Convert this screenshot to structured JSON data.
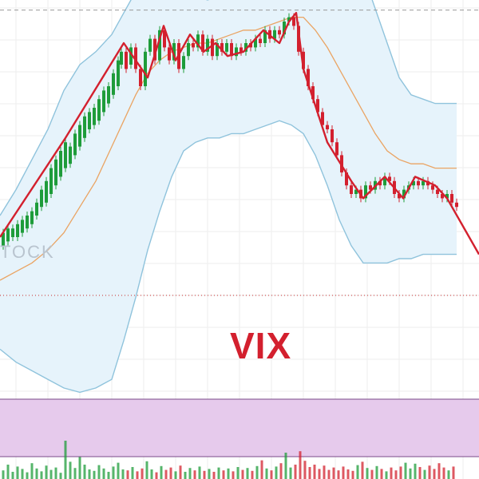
{
  "chart_data": {
    "type": "candlestick",
    "title": "VIX",
    "watermark": "TOCK",
    "colors": {
      "up": "#1e9c3a",
      "down": "#d3202e",
      "zigzag": "#d3202e",
      "band_line": "#8fc3dc",
      "band_fill": "#e6f3fb",
      "moving_average": "#eaa463",
      "volume_panel": "#e6caec",
      "volume_panel_border": "#7a4a88",
      "title": "#d3202e",
      "grid": "#eeeeee",
      "resistance_line": "#999999",
      "support_line": "#c62a2a"
    },
    "grid": true,
    "ylim": [
      0,
      100
    ],
    "bands": {
      "x": [
        0,
        20,
        40,
        60,
        80,
        100,
        120,
        140,
        155,
        170,
        185,
        200,
        215,
        230,
        245,
        260,
        275,
        290,
        305,
        320,
        335,
        350,
        365,
        380,
        395,
        410,
        425,
        440,
        455,
        470,
        485,
        500,
        515,
        530,
        545,
        560,
        572
      ],
      "upper": [
        50,
        56,
        63,
        70,
        79,
        85,
        88,
        92,
        97,
        102,
        106,
        108,
        107,
        104,
        101,
        100,
        101,
        102,
        103,
        104,
        106,
        107,
        108,
        111,
        115,
        118,
        116,
        113,
        106,
        98,
        90,
        82,
        78,
        77,
        76,
        76,
        76
      ],
      "lower": [
        19,
        16,
        14,
        12,
        10,
        9,
        10,
        12,
        21,
        31,
        42,
        51,
        59,
        65,
        67,
        68,
        68,
        69,
        69,
        70,
        71,
        72,
        71,
        69,
        64,
        57,
        49,
        43,
        39,
        39,
        39,
        40,
        40,
        41,
        41,
        41,
        41
      ],
      "middle": [
        35,
        37,
        39,
        42,
        46,
        52,
        58,
        66,
        72,
        78,
        83,
        86,
        88,
        89,
        90,
        90,
        91,
        92,
        93,
        93,
        94,
        95,
        96,
        96,
        93,
        89,
        84,
        79,
        74,
        69,
        65,
        63,
        62,
        62,
        61,
        61,
        61
      ]
    },
    "zigzag": [
      [
        0,
        45
      ],
      [
        82,
        68
      ],
      [
        155,
        90
      ],
      [
        185,
        82
      ],
      [
        205,
        94
      ],
      [
        220,
        86
      ],
      [
        238,
        92
      ],
      [
        255,
        88
      ],
      [
        270,
        90
      ],
      [
        285,
        87
      ],
      [
        305,
        88
      ],
      [
        330,
        93
      ],
      [
        350,
        90
      ],
      [
        362,
        95
      ],
      [
        371,
        97
      ],
      [
        380,
        84
      ],
      [
        410,
        67
      ],
      [
        440,
        58
      ],
      [
        455,
        54
      ],
      [
        482,
        59
      ],
      [
        505,
        54
      ],
      [
        520,
        59
      ],
      [
        545,
        57
      ],
      [
        560,
        54
      ],
      [
        600,
        41
      ]
    ],
    "candles": [
      [
        4,
        43,
        46
      ],
      [
        10,
        44,
        47
      ],
      [
        16,
        45,
        47
      ],
      [
        22,
        45,
        48
      ],
      [
        28,
        46,
        49
      ],
      [
        34,
        47,
        50
      ],
      [
        40,
        48,
        51
      ],
      [
        46,
        50,
        53
      ],
      [
        52,
        52,
        56
      ],
      [
        58,
        53,
        58
      ],
      [
        64,
        55,
        61
      ],
      [
        70,
        57,
        63
      ],
      [
        76,
        59,
        65
      ],
      [
        82,
        61,
        67
      ],
      [
        88,
        62,
        66
      ],
      [
        94,
        64,
        69
      ],
      [
        100,
        66,
        71
      ],
      [
        106,
        68,
        73
      ],
      [
        112,
        70,
        74
      ],
      [
        118,
        71,
        75
      ],
      [
        124,
        72,
        77
      ],
      [
        130,
        74,
        79
      ],
      [
        136,
        76,
        80
      ],
      [
        142,
        78,
        83
      ],
      [
        148,
        80,
        86
      ],
      [
        152,
        85,
        88
      ],
      [
        158,
        88,
        84
      ],
      [
        164,
        85,
        89
      ],
      [
        170,
        89,
        84
      ],
      [
        176,
        84,
        80
      ],
      [
        182,
        80,
        88
      ],
      [
        188,
        88,
        91
      ],
      [
        194,
        91,
        86
      ],
      [
        200,
        86,
        93
      ],
      [
        206,
        93,
        89
      ],
      [
        212,
        89,
        86
      ],
      [
        218,
        86,
        90
      ],
      [
        224,
        90,
        84
      ],
      [
        230,
        84,
        87
      ],
      [
        236,
        87,
        90
      ],
      [
        242,
        90,
        89
      ],
      [
        248,
        89,
        92
      ],
      [
        254,
        92,
        88
      ],
      [
        260,
        88,
        91
      ],
      [
        266,
        91,
        87
      ],
      [
        272,
        87,
        90
      ],
      [
        278,
        90,
        88
      ],
      [
        284,
        88,
        90
      ],
      [
        290,
        90,
        87
      ],
      [
        296,
        87,
        89
      ],
      [
        302,
        89,
        88
      ],
      [
        308,
        88,
        90
      ],
      [
        314,
        90,
        89
      ],
      [
        320,
        89,
        91
      ],
      [
        326,
        91,
        90
      ],
      [
        332,
        90,
        93
      ],
      [
        338,
        93,
        91
      ],
      [
        344,
        91,
        93
      ],
      [
        350,
        93,
        92
      ],
      [
        356,
        92,
        95
      ],
      [
        362,
        95,
        96
      ],
      [
        368,
        96,
        94
      ],
      [
        374,
        94,
        88
      ],
      [
        380,
        88,
        84
      ],
      [
        386,
        84,
        80
      ],
      [
        392,
        80,
        77
      ],
      [
        398,
        77,
        74
      ],
      [
        404,
        74,
        71
      ],
      [
        410,
        71,
        70
      ],
      [
        416,
        70,
        67
      ],
      [
        422,
        67,
        64
      ],
      [
        428,
        64,
        60
      ],
      [
        434,
        60,
        57
      ],
      [
        440,
        57,
        55
      ],
      [
        446,
        55,
        56
      ],
      [
        452,
        56,
        54
      ],
      [
        458,
        54,
        57
      ],
      [
        464,
        57,
        56
      ],
      [
        470,
        56,
        58
      ],
      [
        476,
        58,
        57
      ],
      [
        482,
        57,
        59
      ],
      [
        488,
        59,
        58
      ],
      [
        494,
        58,
        55
      ],
      [
        500,
        55,
        54
      ],
      [
        506,
        54,
        56
      ],
      [
        512,
        56,
        57
      ],
      [
        518,
        57,
        58
      ],
      [
        524,
        58,
        57
      ],
      [
        530,
        57,
        58
      ],
      [
        536,
        58,
        57
      ],
      [
        542,
        57,
        56
      ],
      [
        548,
        56,
        55
      ],
      [
        554,
        55,
        54
      ],
      [
        560,
        54,
        55
      ],
      [
        566,
        55,
        53
      ],
      [
        572,
        53,
        52
      ]
    ],
    "volume_range": [
      0,
      10
    ],
    "volumes": [
      [
        4,
        1.8
      ],
      [
        10,
        3.0
      ],
      [
        16,
        1.5
      ],
      [
        22,
        2.6
      ],
      [
        28,
        2.1
      ],
      [
        34,
        1.4
      ],
      [
        40,
        3.3
      ],
      [
        46,
        2.2
      ],
      [
        52,
        1.6
      ],
      [
        58,
        2.8
      ],
      [
        64,
        1.9
      ],
      [
        70,
        2.4
      ],
      [
        76,
        1.3
      ],
      [
        82,
        8.0
      ],
      [
        88,
        3.6
      ],
      [
        94,
        2.3
      ],
      [
        100,
        4.6
      ],
      [
        106,
        3.0
      ],
      [
        112,
        2.0
      ],
      [
        118,
        1.7
      ],
      [
        124,
        2.9
      ],
      [
        130,
        2.2
      ],
      [
        136,
        1.5
      ],
      [
        142,
        2.6
      ],
      [
        148,
        3.4
      ],
      [
        154,
        2.0
      ],
      [
        160,
        1.8
      ],
      [
        166,
        2.5
      ],
      [
        172,
        1.6
      ],
      [
        178,
        2.2
      ],
      [
        184,
        3.7
      ],
      [
        190,
        2.0
      ],
      [
        196,
        1.4
      ],
      [
        202,
        2.7
      ],
      [
        208,
        1.9
      ],
      [
        214,
        2.4
      ],
      [
        220,
        1.6
      ],
      [
        226,
        2.8
      ],
      [
        232,
        1.5
      ],
      [
        238,
        2.3
      ],
      [
        244,
        1.8
      ],
      [
        250,
        2.6
      ],
      [
        256,
        1.7
      ],
      [
        262,
        2.1
      ],
      [
        268,
        1.5
      ],
      [
        274,
        2.4
      ],
      [
        280,
        1.8
      ],
      [
        286,
        2.2
      ],
      [
        292,
        1.6
      ],
      [
        298,
        2.5
      ],
      [
        304,
        1.9
      ],
      [
        310,
        2.3
      ],
      [
        316,
        1.7
      ],
      [
        322,
        2.7
      ],
      [
        328,
        3.9
      ],
      [
        334,
        2.2
      ],
      [
        340,
        1.8
      ],
      [
        346,
        2.6
      ],
      [
        352,
        3.3
      ],
      [
        358,
        5.5
      ],
      [
        364,
        2.4
      ],
      [
        370,
        3.0
      ],
      [
        376,
        5.8
      ],
      [
        382,
        3.8
      ],
      [
        388,
        2.5
      ],
      [
        394,
        3.0
      ],
      [
        400,
        2.1
      ],
      [
        406,
        2.8
      ],
      [
        412,
        1.9
      ],
      [
        418,
        2.4
      ],
      [
        424,
        1.8
      ],
      [
        430,
        2.6
      ],
      [
        436,
        2.0
      ],
      [
        442,
        1.7
      ],
      [
        448,
        2.9
      ],
      [
        454,
        3.6
      ],
      [
        460,
        2.3
      ],
      [
        466,
        1.9
      ],
      [
        472,
        2.7
      ],
      [
        478,
        2.1
      ],
      [
        484,
        1.6
      ],
      [
        490,
        2.4
      ],
      [
        496,
        1.8
      ],
      [
        502,
        2.6
      ],
      [
        508,
        3.4
      ],
      [
        514,
        2.2
      ],
      [
        520,
        3.2
      ],
      [
        526,
        2.5
      ],
      [
        532,
        1.9
      ],
      [
        538,
        2.8
      ],
      [
        544,
        2.1
      ],
      [
        550,
        3.3
      ],
      [
        556,
        2.4
      ],
      [
        562,
        1.8
      ],
      [
        568,
        2.6
      ]
    ],
    "resistance_level": 96,
    "support_level": 50,
    "volume_panel": {
      "from": 0,
      "to": 10
    }
  }
}
